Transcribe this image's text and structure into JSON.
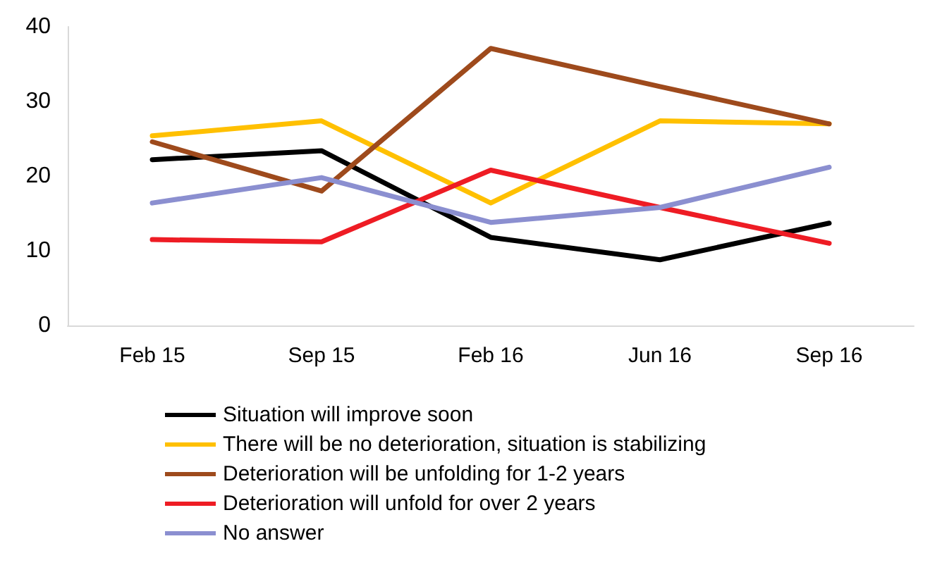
{
  "chart_data": {
    "type": "line",
    "categories": [
      "Feb 15",
      "Sep 15",
      "Feb 16",
      "Jun 16",
      "Sep 16"
    ],
    "series": [
      {
        "name": "Situation will improve soon",
        "color": "#000000",
        "values": [
          22.2,
          23.4,
          11.8,
          8.8,
          13.7
        ]
      },
      {
        "name": "There will be no deterioration, situation is stabilizing",
        "color": "#ffc000",
        "values": [
          25.4,
          27.4,
          16.4,
          27.4,
          27.0
        ]
      },
      {
        "name": "Deterioration will be unfolding for 1-2 years",
        "color": "#9e4a1c",
        "values": [
          24.6,
          18.0,
          37.1,
          32.0,
          27.0
        ]
      },
      {
        "name": "Deterioration will unfold for over 2 years",
        "color": "#ee1c24",
        "values": [
          11.5,
          11.2,
          20.8,
          15.8,
          11.0
        ]
      },
      {
        "name": "No answer",
        "color": "#8b8fd0",
        "values": [
          16.4,
          19.8,
          13.8,
          15.8,
          21.2
        ]
      }
    ],
    "ylim": [
      0,
      40
    ],
    "yticks": [
      0,
      10,
      20,
      30,
      40
    ],
    "grid": false,
    "legend": "bottom",
    "marker": "none",
    "line_style": "solid"
  }
}
